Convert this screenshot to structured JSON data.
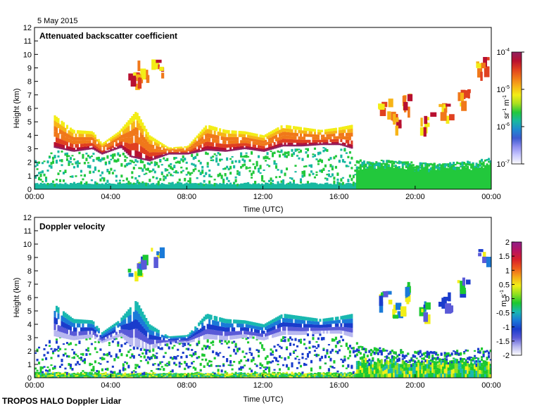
{
  "date_label": "5 May 2015",
  "footer_label": "TROPOS HALO Doppler Lidar",
  "colors": {
    "backscatter_ramp": [
      "#fbfbfb",
      "#c9c9ff",
      "#8e8ef0",
      "#3c5ad0",
      "#1f8ad0",
      "#18b8a0",
      "#22c83c",
      "#a8e020",
      "#f3ed16",
      "#f7b417",
      "#f0781a",
      "#e04020",
      "#b81030",
      "#902060"
    ],
    "velocity_ramp": [
      "#ffffff",
      "#b8b8f0",
      "#5a5ad8",
      "#1a3ccc",
      "#1a7ad8",
      "#19b8b0",
      "#1cc830",
      "#8fe020",
      "#f2ef18",
      "#f5a81a",
      "#ee5a1c",
      "#d8202a",
      "#b81460",
      "#902088"
    ]
  },
  "chart_data": [
    {
      "type": "heatmap",
      "title": "Attenuated backscatter coefficient",
      "xlabel": "Time (UTC)",
      "ylabel": "Height (km)",
      "x_ticks": [
        "00:00",
        "04:00",
        "08:00",
        "12:00",
        "16:00",
        "20:00",
        "00:00"
      ],
      "x_range_hours": [
        0,
        24
      ],
      "y_ticks": [
        "0",
        "1",
        "2",
        "3",
        "4",
        "5",
        "6",
        "7",
        "8",
        "9",
        "10",
        "11",
        "12"
      ],
      "ylim": [
        0,
        12
      ],
      "colorbar": {
        "label": "sr-1 m-1",
        "label_parts": [
          "sr",
          "-1",
          " m",
          "-1"
        ],
        "scale": "log",
        "range": [
          1e-07,
          0.0001
        ],
        "ticks": [
          {
            "base": "10",
            "exp": "-4",
            "value": 0.0001
          },
          {
            "base": "10",
            "exp": "-5",
            "value": 1e-05
          },
          {
            "base": "10",
            "exp": "-6",
            "value": 1e-06
          },
          {
            "base": "10",
            "exp": "-7",
            "value": 1e-07
          }
        ]
      },
      "features": {
        "boundary_layer_top_km": [
          [
            0,
            2.6
          ],
          [
            0.5,
            2.4
          ],
          [
            1,
            3.3
          ],
          [
            2,
            3.0
          ],
          [
            3,
            3.2
          ],
          [
            3.5,
            2.8
          ],
          [
            4.5,
            3.3
          ],
          [
            5,
            2.6
          ],
          [
            6,
            2.3
          ],
          [
            7,
            2.8
          ],
          [
            8,
            2.8
          ],
          [
            9,
            3.1
          ],
          [
            10,
            3.0
          ],
          [
            11,
            3.2
          ],
          [
            12,
            3.0
          ],
          [
            13,
            3.4
          ],
          [
            14,
            3.4
          ],
          [
            15,
            3.5
          ],
          [
            16,
            3.5
          ],
          [
            16.7,
            3.2
          ],
          [
            17,
            2.4
          ],
          [
            19,
            2.2
          ],
          [
            21,
            2.0
          ],
          [
            23,
            2.2
          ],
          [
            24,
            2.5
          ]
        ],
        "cloud_layer_km": [
          [
            1,
            5.5
          ],
          [
            2,
            4.4
          ],
          [
            3,
            4.3
          ],
          [
            3.5,
            3.4
          ],
          [
            4.4,
            4.3
          ],
          [
            5.3,
            5.8
          ],
          [
            6,
            4.0
          ],
          [
            7,
            3.1
          ],
          [
            8,
            3.2
          ],
          [
            9,
            4.8
          ],
          [
            10,
            4.4
          ],
          [
            11,
            4.3
          ],
          [
            12,
            4.0
          ],
          [
            13,
            4.8
          ],
          [
            14,
            4.6
          ],
          [
            15,
            4.4
          ],
          [
            16,
            4.6
          ],
          [
            16.7,
            4.8
          ]
        ],
        "high_cloud_km": [
          [
            5.2,
            8.4
          ],
          [
            5.6,
            9.0
          ],
          [
            6.4,
            9.2
          ],
          [
            18.3,
            6.2
          ],
          [
            19.0,
            5.3
          ],
          [
            19.6,
            6.6
          ],
          [
            20.5,
            5.2
          ],
          [
            21.5,
            5.8
          ],
          [
            22.5,
            7.0
          ],
          [
            23.5,
            9.3
          ]
        ]
      }
    },
    {
      "type": "heatmap",
      "title": "Doppler velocity",
      "xlabel": "Time (UTC)",
      "ylabel": "Height (km)",
      "x_ticks": [
        "00:00",
        "04:00",
        "08:00",
        "12:00",
        "16:00",
        "20:00",
        "00:00"
      ],
      "x_range_hours": [
        0,
        24
      ],
      "y_ticks": [
        "0",
        "1",
        "2",
        "3",
        "4",
        "5",
        "6",
        "7",
        "8",
        "9",
        "10",
        "11",
        "12"
      ],
      "ylim": [
        0,
        12
      ],
      "colorbar": {
        "label": "m s-1",
        "label_parts": [
          "m s",
          "-1"
        ],
        "scale": "linear",
        "range": [
          -2,
          2
        ],
        "ticks": [
          "2",
          "1.5",
          "1",
          "0.5",
          "0",
          "-0.5",
          "-1",
          "-1.5",
          "-2"
        ]
      },
      "features": {
        "cloud_velocity_m_s": -1.3,
        "boundary_layer_velocity_m_s": 0.2
      }
    }
  ]
}
